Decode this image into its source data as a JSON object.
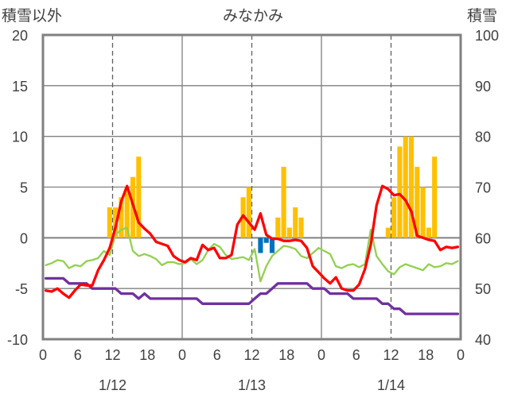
{
  "chart_data": {
    "type": "bar+line",
    "title": "みなかみ",
    "left_axis_label": "積雪以外",
    "right_axis_label": "積雪",
    "left_ylim": [
      -10,
      20
    ],
    "left_yticks": [
      -10,
      -5,
      0,
      5,
      10,
      15,
      20
    ],
    "right_ylim": [
      40,
      100
    ],
    "right_yticks": [
      40,
      50,
      60,
      70,
      80,
      90,
      100
    ],
    "x_hours_total": 72,
    "x_tick_labels": [
      "0",
      "6",
      "12",
      "18",
      "0",
      "6",
      "12",
      "18",
      "0",
      "6",
      "12",
      "18",
      "0"
    ],
    "date_labels": [
      "1/12",
      "1/13",
      "1/14"
    ],
    "colors": {
      "snowfall": "#FFC000",
      "precip": "#0070C0",
      "temperature": "#FF0000",
      "humidity": "#92D050",
      "snow_depth": "#7030A0",
      "frame": "#808080"
    },
    "series": [
      {
        "name": "snowfall",
        "kind": "bar",
        "axis": "left",
        "values": [
          0,
          0,
          0,
          0,
          0,
          0,
          0,
          0,
          0,
          0,
          0,
          3,
          3,
          4,
          5,
          6,
          8,
          0,
          0,
          0,
          0,
          0,
          0,
          0,
          0,
          0,
          0,
          0,
          0,
          0,
          0,
          0,
          0,
          0,
          4,
          5,
          0,
          0,
          0,
          0,
          2,
          7,
          1,
          3,
          2,
          0,
          0,
          0,
          0,
          0,
          0,
          0,
          0,
          0,
          0,
          0,
          0,
          0,
          0,
          1,
          4,
          9,
          10,
          10,
          7,
          5,
          1,
          8,
          0,
          0,
          0,
          0
        ]
      },
      {
        "name": "precip",
        "kind": "bar",
        "axis": "left",
        "values": [
          0,
          0,
          0,
          0,
          0,
          0,
          0,
          0,
          0,
          0,
          0,
          0,
          0,
          0,
          0,
          0,
          0,
          0,
          0,
          0,
          0,
          0,
          0,
          0,
          0,
          0,
          0,
          0,
          0,
          0,
          0,
          0,
          0,
          0,
          0,
          0,
          0,
          -1.5,
          -0.5,
          -1.5,
          0,
          0,
          0,
          0,
          0,
          0,
          0,
          0,
          0,
          0,
          0,
          0,
          0,
          0,
          0,
          0,
          0,
          0,
          0,
          0,
          0,
          0,
          0,
          0,
          0,
          0,
          0,
          0,
          0,
          0,
          0,
          0
        ]
      },
      {
        "name": "temperature",
        "kind": "line",
        "axis": "left",
        "values": [
          -5.2,
          -5.3,
          -5.0,
          -5.5,
          -5.9,
          -5.2,
          -4.6,
          -4.7,
          -4.7,
          -3.2,
          -2.2,
          -1.0,
          1.0,
          3.6,
          5.1,
          3.3,
          1.5,
          0.9,
          0.4,
          -0.4,
          -0.6,
          -0.8,
          -1.8,
          -2.2,
          -2.4,
          -2.0,
          -2.2,
          -0.7,
          -1.2,
          -1.0,
          -2.0,
          -2.0,
          -1.7,
          1.3,
          2.2,
          1.5,
          0.8,
          2.4,
          0.3,
          -0.1,
          -0.1,
          -0.3,
          -0.3,
          -0.2,
          -0.3,
          -1.0,
          -2.8,
          -3.4,
          -4.0,
          -4.5,
          -3.9,
          -5.0,
          -5.2,
          -5.2,
          -4.6,
          -3.1,
          -0.7,
          3.2,
          5.1,
          4.8,
          4.2,
          4.3,
          3.7,
          2.6,
          0.2,
          0.0,
          -0.2,
          -0.3,
          -1.2,
          -0.9,
          -1.0,
          -0.9
        ]
      },
      {
        "name": "humidity",
        "kind": "line",
        "axis": "left",
        "values": [
          -2.7,
          -2.5,
          -2.2,
          -2.3,
          -3.0,
          -2.7,
          -2.8,
          -2.3,
          -2.2,
          -2.0,
          -1.3,
          -1.7,
          0.3,
          0.8,
          1.0,
          -1.3,
          -1.8,
          -1.6,
          -1.8,
          -2.1,
          -2.7,
          -2.4,
          -2.4,
          -2.6,
          -2.5,
          -2.1,
          -2.6,
          -2.2,
          -1.2,
          -0.6,
          -0.9,
          -1.7,
          -2.1,
          -2.0,
          -1.9,
          -2.2,
          -1.1,
          -4.3,
          -2.8,
          -1.8,
          -1.3,
          -0.8,
          -0.9,
          -1.1,
          -1.8,
          -2.0,
          -1.5,
          -1.0,
          -1.3,
          -1.6,
          -2.8,
          -3.0,
          -2.7,
          -2.6,
          -2.9,
          -2.6,
          0.8,
          -1.8,
          -2.6,
          -3.3,
          -3.6,
          -2.9,
          -2.6,
          -2.8,
          -3.0,
          -3.2,
          -2.6,
          -2.9,
          -2.8,
          -2.5,
          -2.6,
          -2.3
        ]
      },
      {
        "name": "snow_depth",
        "kind": "line",
        "axis": "right",
        "values": [
          52,
          52,
          52,
          52,
          51,
          51,
          51,
          51,
          50,
          50,
          50,
          50,
          50,
          49,
          49,
          49,
          48,
          49,
          48,
          48,
          48,
          48,
          48,
          48,
          48,
          48,
          48,
          47,
          47,
          47,
          47,
          47,
          47,
          47,
          47,
          47,
          48,
          49,
          49,
          50,
          51,
          51,
          51,
          51,
          51,
          51,
          50,
          50,
          50,
          49,
          49,
          49,
          49,
          48,
          48,
          48,
          48,
          48,
          47,
          47,
          46,
          46,
          45,
          45,
          45,
          45,
          45,
          45,
          45,
          45,
          45,
          45
        ]
      }
    ]
  }
}
